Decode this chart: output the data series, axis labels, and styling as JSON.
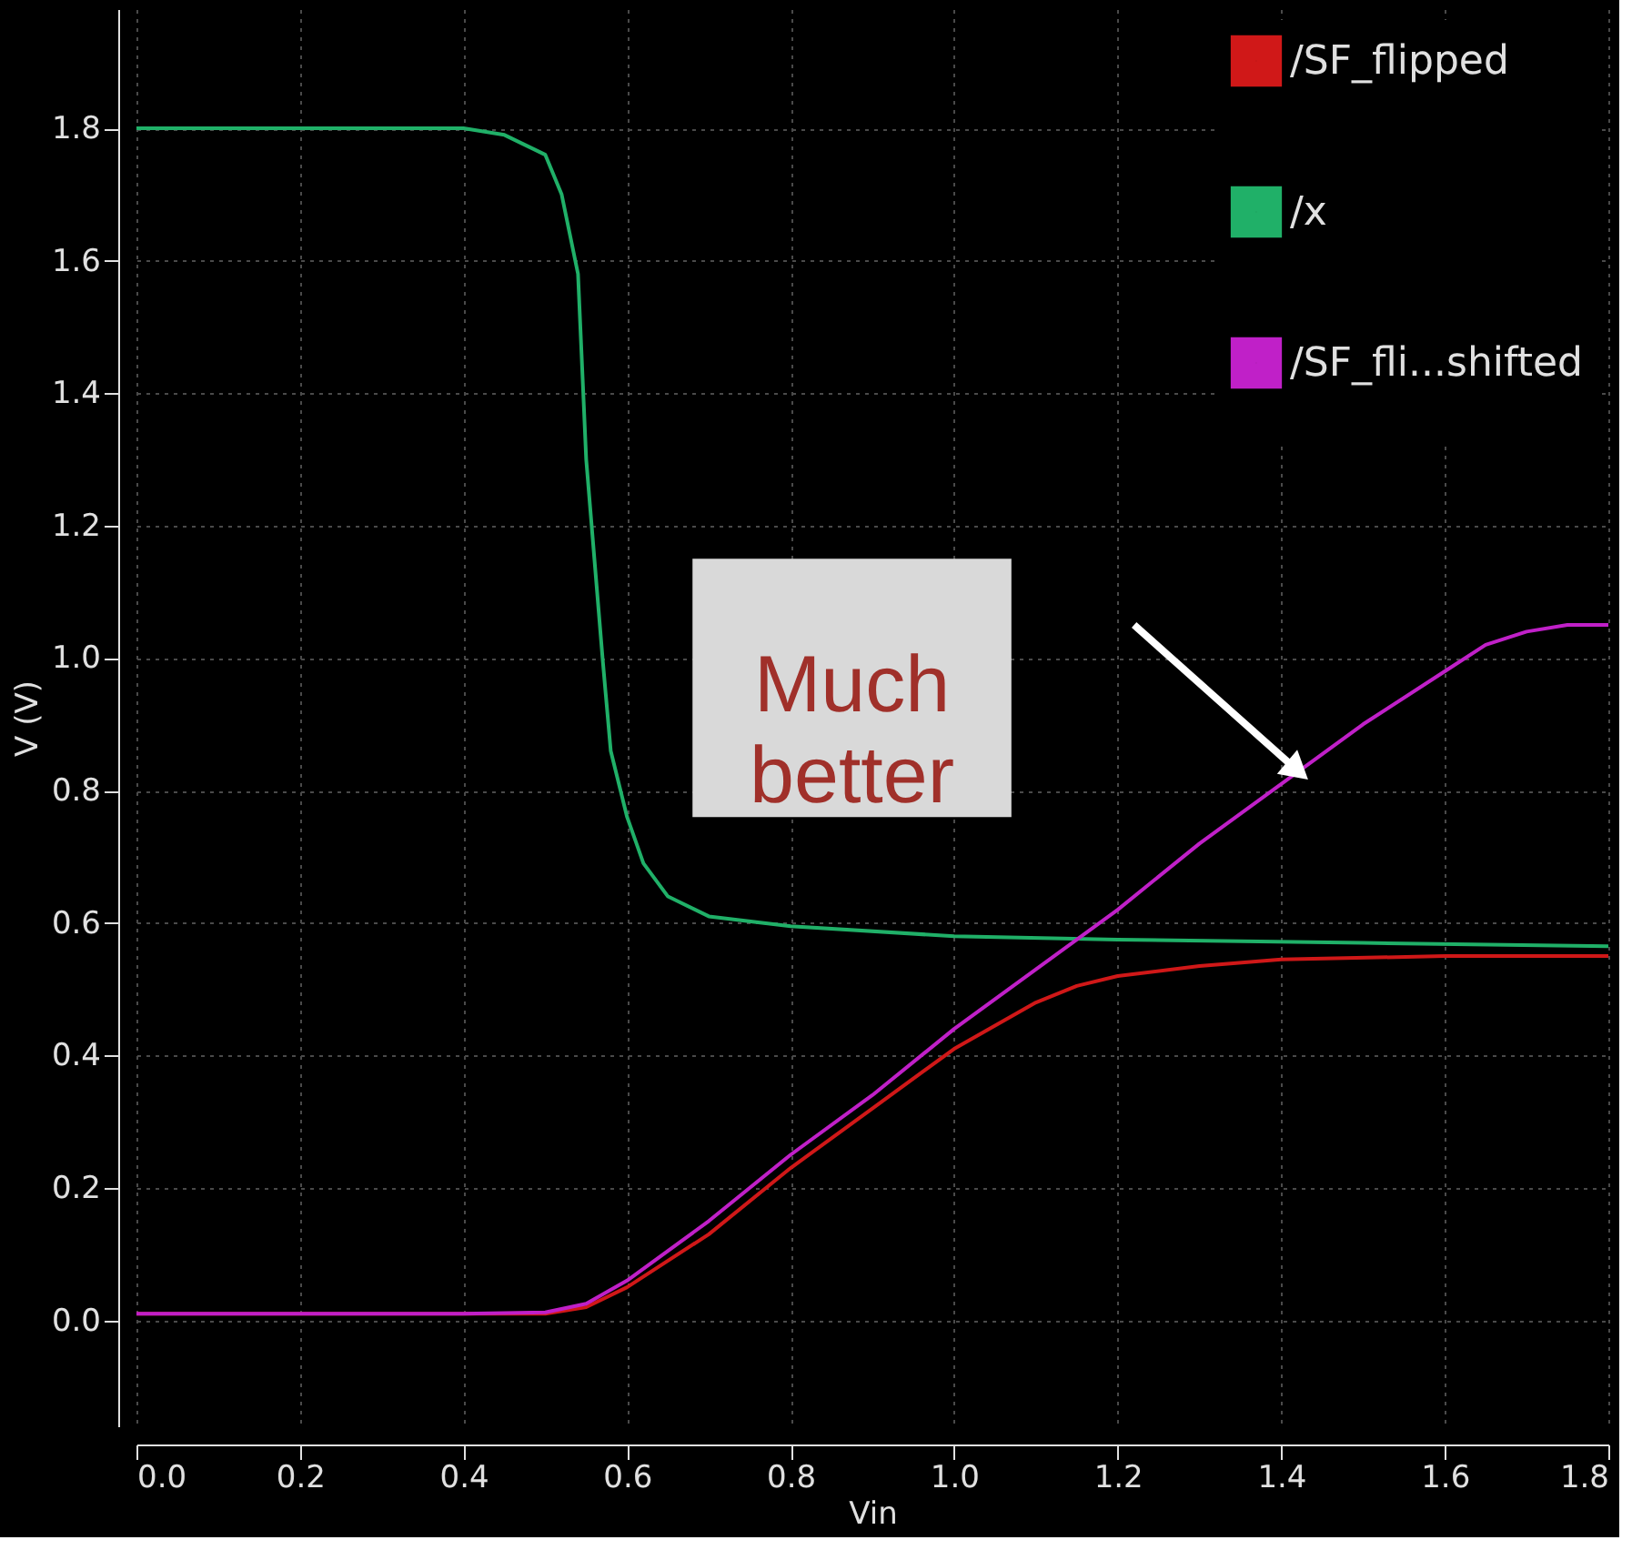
{
  "chart_data": {
    "type": "line",
    "xlabel": "Vin",
    "ylabel": "V (V)",
    "xlim": [
      0,
      1.8
    ],
    "ylim": [
      -0.16,
      1.98
    ],
    "xticks": [
      {
        "value": 0,
        "label": "0.0"
      },
      0.2,
      0.4,
      0.6,
      0.8,
      {
        "value": 1,
        "label": "1.0"
      },
      1.2,
      1.4,
      1.6,
      1.8
    ],
    "yticks": [
      {
        "value": 0,
        "label": "0.0"
      },
      0.2,
      0.4,
      0.6,
      0.8,
      {
        "value": 1,
        "label": "1.0"
      },
      1.2,
      1.4,
      1.6,
      1.8
    ],
    "grid": true,
    "legend": "top right",
    "line_style": "solid",
    "marker": "none",
    "series": [
      {
        "name": "/SF_flipped",
        "color": "#d01818",
        "x": [
          0,
          0.4,
          0.5,
          0.55,
          0.6,
          0.7,
          0.8,
          0.9,
          1.0,
          1.1,
          1.15,
          1.2,
          1.3,
          1.4,
          1.6,
          1.8
        ],
        "values": [
          0.01,
          0.01,
          0.01,
          0.02,
          0.05,
          0.13,
          0.23,
          0.32,
          0.41,
          0.48,
          0.505,
          0.52,
          0.535,
          0.545,
          0.55,
          0.55
        ]
      },
      {
        "name": "/x",
        "color": "#20b068",
        "x": [
          0,
          0.4,
          0.45,
          0.5,
          0.52,
          0.54,
          0.55,
          0.56,
          0.57,
          0.58,
          0.6,
          0.62,
          0.65,
          0.7,
          0.8,
          1.0,
          1.2,
          1.5,
          1.8
        ],
        "values": [
          1.8,
          1.8,
          1.79,
          1.76,
          1.7,
          1.58,
          1.3,
          1.15,
          1.0,
          0.86,
          0.76,
          0.69,
          0.64,
          0.61,
          0.595,
          0.58,
          0.575,
          0.57,
          0.565
        ]
      },
      {
        "name": "/SF_fli...shifted",
        "color": "#c020c8",
        "x": [
          0,
          0.4,
          0.5,
          0.55,
          0.6,
          0.7,
          0.8,
          0.9,
          1.0,
          1.1,
          1.2,
          1.3,
          1.4,
          1.5,
          1.6,
          1.65,
          1.7,
          1.75,
          1.8
        ],
        "values": [
          0.01,
          0.01,
          0.012,
          0.025,
          0.06,
          0.15,
          0.25,
          0.34,
          0.44,
          0.53,
          0.62,
          0.72,
          0.81,
          0.9,
          0.98,
          1.02,
          1.04,
          1.05,
          1.05
        ]
      }
    ],
    "annotations": [
      "Much better"
    ]
  }
}
